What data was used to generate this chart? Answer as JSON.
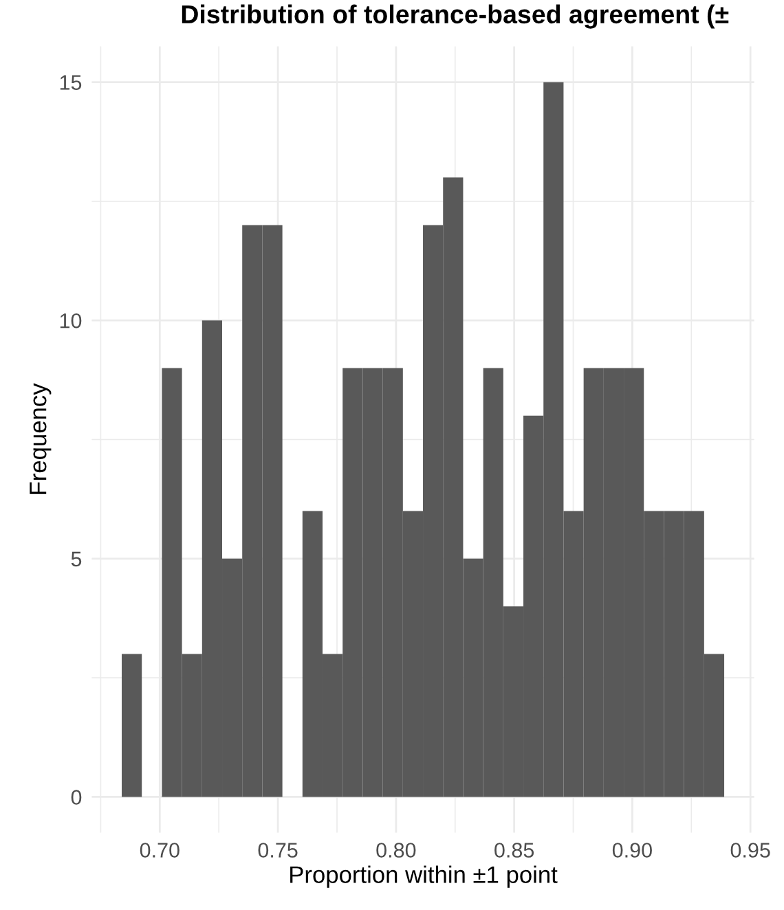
{
  "chart_data": {
    "type": "histogram",
    "title": "Distribution of tolerance-based agreement (±",
    "xlabel": "Proportion within ±1 point",
    "ylabel": "Frequency",
    "bins": [
      0.6839,
      0.6924,
      0.7009,
      0.7094,
      0.7179,
      0.7264,
      0.7349,
      0.7434,
      0.7519,
      0.7604,
      0.7689,
      0.7774,
      0.7859,
      0.7944,
      0.8029,
      0.8114,
      0.8199,
      0.8284,
      0.8369,
      0.8454,
      0.8539,
      0.8624,
      0.8709,
      0.8794,
      0.8879,
      0.8964,
      0.9049,
      0.9134,
      0.9219,
      0.9304,
      0.9389
    ],
    "values": [
      3,
      0,
      9,
      3,
      10,
      5,
      12,
      12,
      0,
      6,
      3,
      9,
      9,
      9,
      6,
      12,
      13,
      5,
      9,
      4,
      8,
      15,
      6,
      9,
      9,
      9,
      6,
      6,
      6,
      3
    ],
    "color": "#595959",
    "xlim": [
      0.6712,
      0.9516
    ],
    "xticks": [
      {
        "value": 0.7,
        "label": "0.70"
      },
      {
        "value": 0.75,
        "label": "0.75"
      },
      {
        "value": 0.8,
        "label": "0.80"
      },
      {
        "value": 0.85,
        "label": "0.85"
      },
      {
        "value": 0.9,
        "label": "0.90"
      },
      {
        "value": 0.95,
        "label": "0.95"
      }
    ],
    "ylim": [
      -0.75,
      15.75
    ],
    "yticks": [
      0,
      5,
      10,
      15
    ],
    "grid": true
  }
}
